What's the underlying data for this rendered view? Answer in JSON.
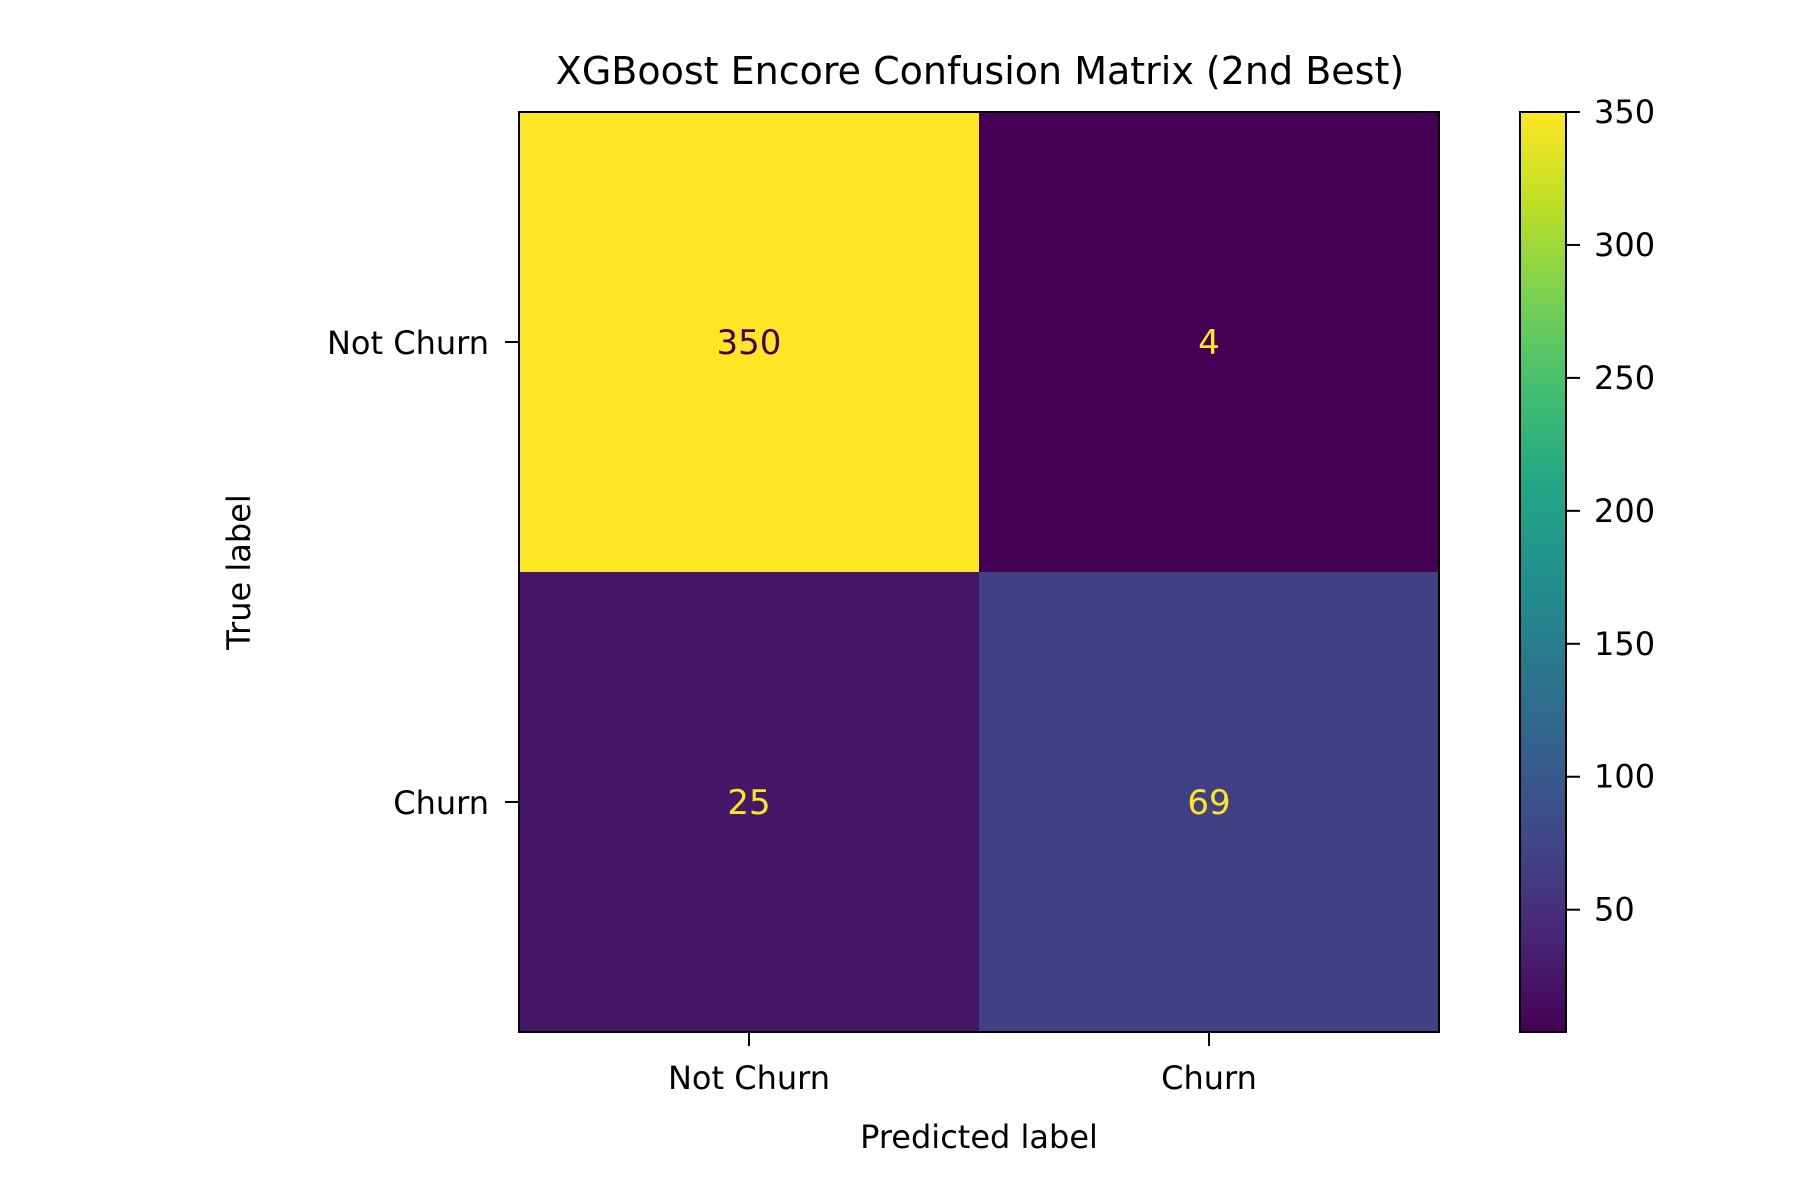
{
  "chart_data": {
    "type": "heatmap",
    "title": "XGBoost Encore Confusion Matrix (2nd Best)",
    "xlabel": "Predicted label",
    "ylabel": "True label",
    "x_categories": [
      "Not Churn",
      "Churn"
    ],
    "y_categories": [
      "Not Churn",
      "Churn"
    ],
    "matrix": [
      [
        350,
        4
      ],
      [
        25,
        69
      ]
    ],
    "value_labels": [
      [
        "350",
        "4"
      ],
      [
        "25",
        "69"
      ]
    ],
    "colormap": "viridis",
    "colorbar": {
      "range": [
        4,
        350
      ],
      "ticks": [
        50,
        100,
        150,
        200,
        250,
        300,
        350
      ],
      "tick_labels": [
        "50",
        "100",
        "150",
        "200",
        "250",
        "300",
        "350"
      ]
    },
    "label_colors": {
      "on_dark": "#fde725",
      "on_light": "#440154"
    },
    "grid": false
  }
}
